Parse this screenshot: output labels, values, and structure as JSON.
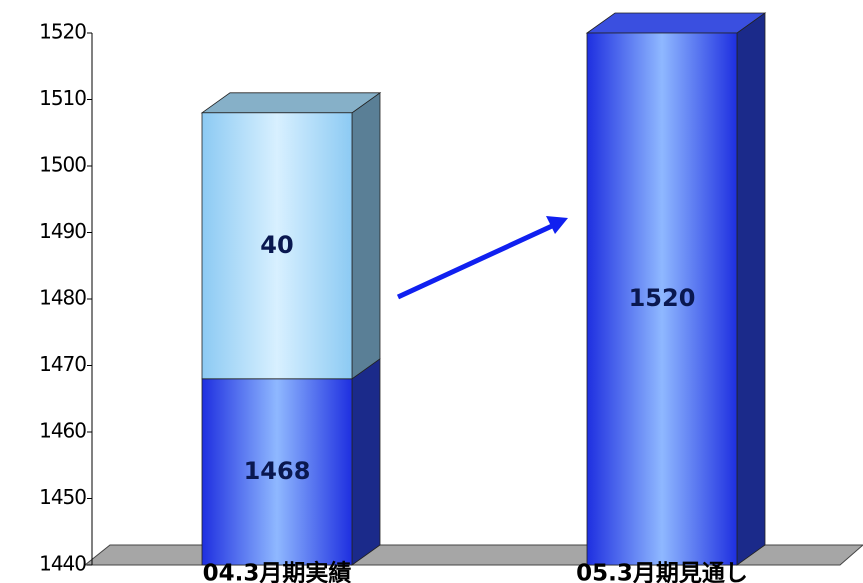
{
  "chart_data": {
    "type": "bar3d_stacked",
    "categories": [
      "04.3月期実績",
      "05.3月期見通し"
    ],
    "series": [
      {
        "color": "#2b3ff2",
        "values": [
          1468,
          1520
        ]
      },
      {
        "color": "#a9dbfa",
        "values": [
          40,
          null
        ]
      }
    ],
    "ylim": [
      1440,
      1520
    ],
    "yticks": [
      1440,
      1450,
      1460,
      1470,
      1480,
      1490,
      1500,
      1510,
      1520
    ],
    "grid": false
  }
}
